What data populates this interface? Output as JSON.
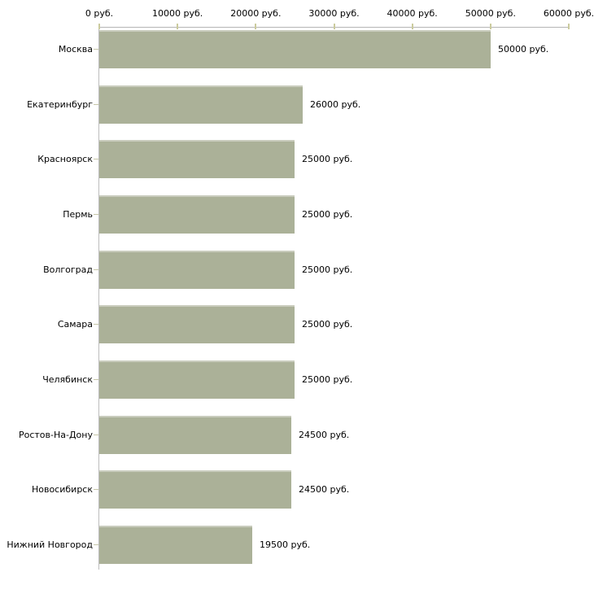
{
  "chart_data": {
    "type": "bar",
    "orientation": "horizontal",
    "title": "",
    "xlabel": "",
    "ylabel": "",
    "xlim": [
      0,
      60000
    ],
    "grid": false,
    "legend": "none",
    "categories": [
      "Москва",
      "Екатеринбург",
      "Красноярск",
      "Пермь",
      "Волгоград",
      "Самара",
      "Челябинск",
      "Ростов-На-Дону",
      "Новосибирск",
      "Нижний Новгород"
    ],
    "values": [
      50000,
      26000,
      25000,
      25000,
      25000,
      25000,
      25000,
      24500,
      24500,
      19500
    ],
    "value_labels": [
      "50000 руб.",
      "26000 руб.",
      "25000 руб.",
      "25000 руб.",
      "25000 руб.",
      "25000 руб.",
      "25000 руб.",
      "24500 руб.",
      "24500 руб.",
      "19500 руб."
    ],
    "x_ticks": [
      0,
      10000,
      20000,
      30000,
      40000,
      50000,
      60000
    ],
    "x_tick_labels": [
      "0 руб.",
      "10000 руб.",
      "20000 руб.",
      "30000 руб.",
      "40000 руб.",
      "50000 руб.",
      "60000 руб."
    ],
    "colors": {
      "bar": "#abb198",
      "bar_top_edge": "#c9ccbd",
      "axis_line": "#b5b5b5",
      "tick": "#cbcb9e",
      "category_tick": "#c6c6a8",
      "text": "#000000",
      "background": "#ffffff"
    }
  }
}
